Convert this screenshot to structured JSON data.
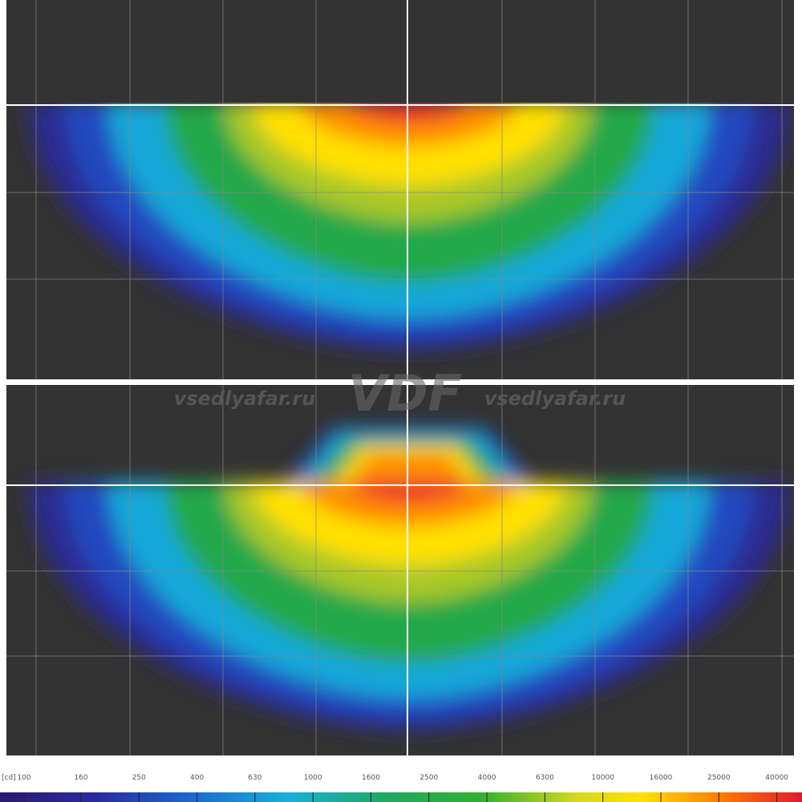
{
  "watermark": {
    "left": "vsedlyafar.ru",
    "logo": "VDF",
    "right": "vsedlyafar.ru"
  },
  "legend": {
    "unit": "[cd]",
    "labels": [
      "100",
      "160",
      "250",
      "400",
      "630",
      "1000",
      "1600",
      "2500",
      "4000",
      "6300",
      "10000",
      "16000",
      "25000",
      "40000"
    ]
  }
}
